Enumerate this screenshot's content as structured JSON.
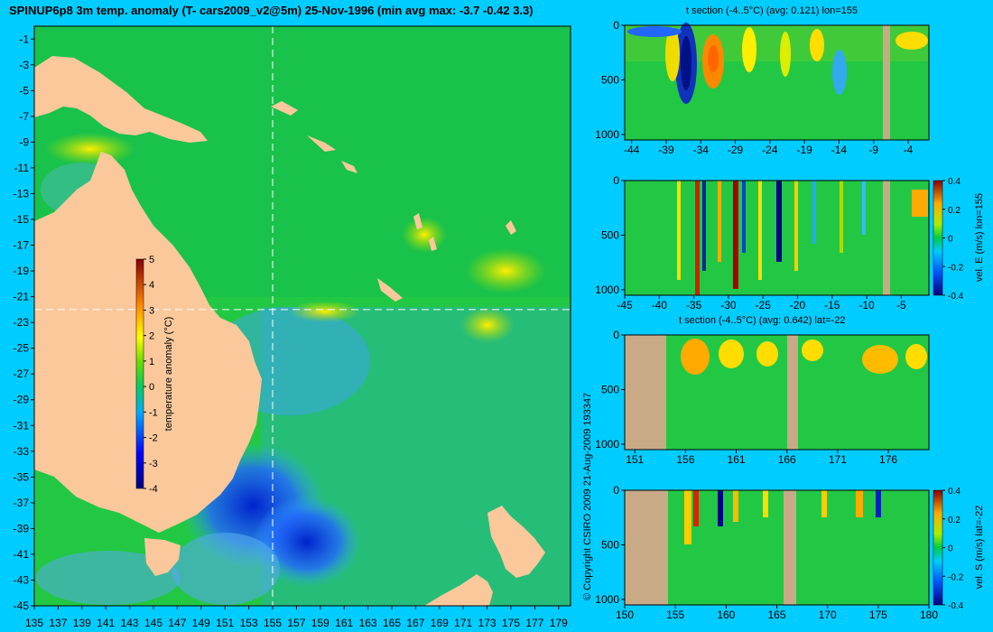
{
  "title": "SPINUP6p8 3m temp. anomaly (T- cars2009_v2@5m) 25-Nov-1996 (min avg max: -3.7 -0.42 3.3)",
  "copyright": "© Copyright CSIRO 2009  21-Aug-2009 193347",
  "colors": {
    "background": "#00ccff",
    "land": "#fac89b",
    "section_land": "#c8aa87"
  },
  "chart_data": [
    {
      "type": "heatmap",
      "id": "map",
      "title": "",
      "x_ticks": [
        135,
        137,
        139,
        141,
        143,
        145,
        147,
        149,
        151,
        153,
        155,
        157,
        159,
        161,
        163,
        165,
        167,
        169,
        171,
        173,
        175,
        177,
        179
      ],
      "y_ticks": [
        -1,
        -3,
        -5,
        -7,
        -9,
        -11,
        -13,
        -15,
        -17,
        -19,
        -21,
        -23,
        -25,
        -27,
        -29,
        -31,
        -33,
        -35,
        -37,
        -39,
        -41,
        -43,
        -45
      ],
      "xlim": [
        135,
        180
      ],
      "ylim": [
        -45,
        0
      ],
      "crosshair": {
        "lon": 155,
        "lat": -22
      },
      "colorbar": {
        "label": "temperature anomaly (°C)",
        "ticks": [
          5,
          4,
          3,
          2,
          1,
          0,
          -1,
          -2,
          -3,
          -4
        ],
        "range": [
          -4,
          5
        ]
      }
    },
    {
      "type": "heatmap",
      "id": "s1",
      "title": "t section (-4..5°C) (avg: 0.121) lon=155",
      "x_ticks": [
        -44,
        -39,
        -34,
        -29,
        -24,
        -19,
        -14,
        -9,
        -4
      ],
      "xlim": [
        -45,
        -1
      ],
      "y_ticks": [
        0,
        500,
        1000
      ],
      "ylim": [
        0,
        1050
      ]
    },
    {
      "type": "heatmap",
      "id": "s2",
      "title": "",
      "x_ticks": [
        -45,
        -40,
        -35,
        -30,
        -25,
        -20,
        -15,
        -10,
        -5
      ],
      "xlim": [
        -45,
        -1
      ],
      "y_ticks": [
        0,
        500,
        1000
      ],
      "ylim": [
        0,
        1050
      ],
      "colorbar": {
        "label": "vel. E (m/s) lon=155",
        "ticks": [
          0.4,
          0.2,
          0,
          -0.2,
          -0.4
        ],
        "range": [
          -0.4,
          0.4
        ]
      }
    },
    {
      "type": "heatmap",
      "id": "s3",
      "title": "t section (-4..5°C) (avg: 0.642) lat=-22",
      "x_ticks": [
        151,
        156,
        161,
        166,
        171,
        176
      ],
      "xlim": [
        150,
        180
      ],
      "y_ticks": [
        0,
        500,
        1000
      ],
      "ylim": [
        0,
        1050
      ]
    },
    {
      "type": "heatmap",
      "id": "s4",
      "title": "",
      "x_ticks": [
        150,
        155,
        160,
        165,
        170,
        175,
        180
      ],
      "xlim": [
        150,
        180
      ],
      "y_ticks": [
        0,
        500,
        1000
      ],
      "ylim": [
        0,
        1050
      ],
      "colorbar": {
        "label": "vel. S (m/s) lat=-22",
        "ticks": [
          0.4,
          0.2,
          0,
          -0.2,
          -0.4
        ],
        "range": [
          -0.4,
          0.4
        ]
      }
    }
  ]
}
